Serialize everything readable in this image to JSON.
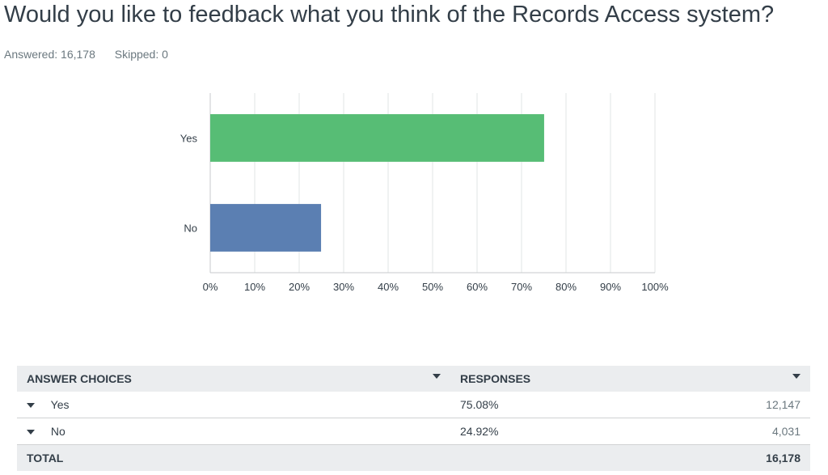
{
  "question": {
    "title": "Would you like to feedback what you think of the Records Access system?",
    "answered": "Answered: 16,178",
    "skipped": "Skipped: 0"
  },
  "chart_data": {
    "type": "bar",
    "orientation": "horizontal",
    "categories": [
      "Yes",
      "No"
    ],
    "values": [
      75.08,
      24.92
    ],
    "colors": [
      "#57bd75",
      "#5b7fb2"
    ],
    "xlim": [
      0,
      100
    ],
    "xticks": [
      0,
      10,
      20,
      30,
      40,
      50,
      60,
      70,
      80,
      90,
      100
    ],
    "xtick_labels": [
      "0%",
      "10%",
      "20%",
      "30%",
      "40%",
      "50%",
      "60%",
      "70%",
      "80%",
      "90%",
      "100%"
    ],
    "grid": true,
    "gridline_color": "#e2e4e5"
  },
  "table": {
    "headers": {
      "choices": "ANSWER CHOICES",
      "responses": "RESPONSES"
    },
    "rows": [
      {
        "label": "Yes",
        "percent": "75.08%",
        "count": "12,147"
      },
      {
        "label": "No",
        "percent": "24.92%",
        "count": "4,031"
      }
    ],
    "total": {
      "label": "TOTAL",
      "count": "16,178"
    }
  }
}
